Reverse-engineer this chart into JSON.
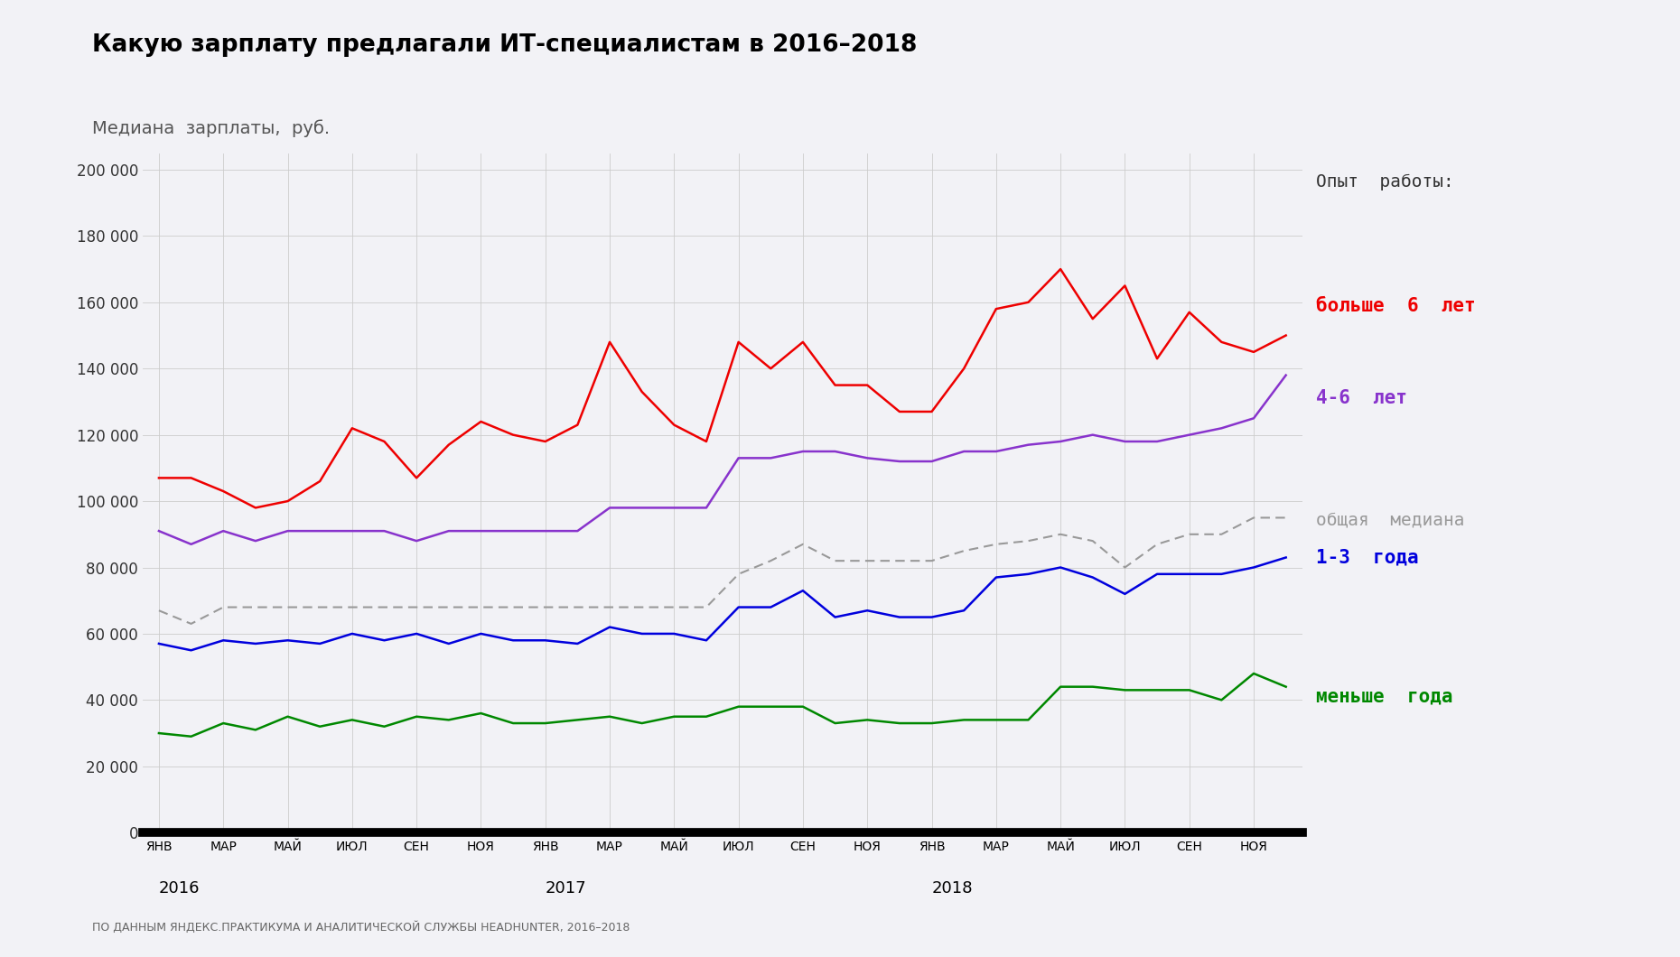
{
  "title": "Какую зарплату предлагали ИТ-специалистам в 2016–2018",
  "ylabel": "Медиана  зарплаты,  руб.",
  "footnote": "ПО ДАННЫМ ЯНДЕКС.ПРАКТИКУМА И АНАЛИТИЧЕСКОЙ СЛУЖБЫ HEADHUNTER, 2016–2018",
  "legend_title": "Опыт  работы:",
  "legend_labels": [
    "больше  6  лет",
    "4-6  лет",
    "общая  медиана",
    "1-3  года",
    "меньше  года"
  ],
  "legend_colors": [
    "#ee0000",
    "#8833cc",
    "#999999",
    "#0000dd",
    "#008800"
  ],
  "x_tick_labels": [
    "ЯНВ",
    "МАР",
    "МАЙ",
    "ИЮЛ",
    "СЕН",
    "НОЯ",
    "ЯНВ",
    "МАР",
    "МАЙ",
    "ИЮЛ",
    "СЕН",
    "НОЯ",
    "ЯНВ",
    "МАР",
    "МАЙ",
    "ИЮЛ",
    "СЕН",
    "НОЯ"
  ],
  "x_tick_positions": [
    0,
    2,
    4,
    6,
    8,
    10,
    12,
    14,
    16,
    18,
    20,
    22,
    24,
    26,
    28,
    30,
    32,
    34
  ],
  "year_ticks": [
    {
      "label": "2016",
      "x": 0
    },
    {
      "label": "2017",
      "x": 12
    },
    {
      "label": "2018",
      "x": 24
    }
  ],
  "series_more6": [
    107000,
    107000,
    103000,
    98000,
    100000,
    106000,
    122000,
    118000,
    107000,
    117000,
    124000,
    120000,
    118000,
    123000,
    148000,
    133000,
    123000,
    118000,
    148000,
    140000,
    148000,
    135000,
    135000,
    127000,
    127000,
    140000,
    158000,
    160000,
    170000,
    155000,
    165000,
    143000,
    157000,
    148000,
    145000,
    150000
  ],
  "series_4to6": [
    91000,
    87000,
    91000,
    88000,
    91000,
    91000,
    91000,
    91000,
    88000,
    91000,
    91000,
    91000,
    91000,
    91000,
    98000,
    98000,
    98000,
    98000,
    113000,
    113000,
    115000,
    115000,
    113000,
    112000,
    112000,
    115000,
    115000,
    117000,
    118000,
    120000,
    118000,
    118000,
    120000,
    122000,
    125000,
    138000
  ],
  "series_median": [
    67000,
    63000,
    68000,
    68000,
    68000,
    68000,
    68000,
    68000,
    68000,
    68000,
    68000,
    68000,
    68000,
    68000,
    68000,
    68000,
    68000,
    68000,
    78000,
    82000,
    87000,
    82000,
    82000,
    82000,
    82000,
    85000,
    87000,
    88000,
    90000,
    88000,
    80000,
    87000,
    90000,
    90000,
    95000,
    95000
  ],
  "series_1to3": [
    57000,
    55000,
    58000,
    57000,
    58000,
    57000,
    60000,
    58000,
    60000,
    57000,
    60000,
    58000,
    58000,
    57000,
    62000,
    60000,
    60000,
    58000,
    68000,
    68000,
    73000,
    65000,
    67000,
    65000,
    65000,
    67000,
    77000,
    78000,
    80000,
    77000,
    72000,
    78000,
    78000,
    78000,
    80000,
    83000
  ],
  "series_less1": [
    30000,
    29000,
    33000,
    31000,
    35000,
    32000,
    34000,
    32000,
    35000,
    34000,
    36000,
    33000,
    33000,
    34000,
    35000,
    33000,
    35000,
    35000,
    38000,
    38000,
    38000,
    33000,
    34000,
    33000,
    33000,
    34000,
    34000,
    34000,
    44000,
    44000,
    43000,
    43000,
    43000,
    40000,
    48000,
    44000
  ],
  "ylim": [
    0,
    205000
  ],
  "yticks": [
    0,
    20000,
    40000,
    60000,
    80000,
    100000,
    120000,
    140000,
    160000,
    180000,
    200000
  ],
  "background_color": "#f2f2f6",
  "grid_color": "#cccccc",
  "line_width": 1.8
}
